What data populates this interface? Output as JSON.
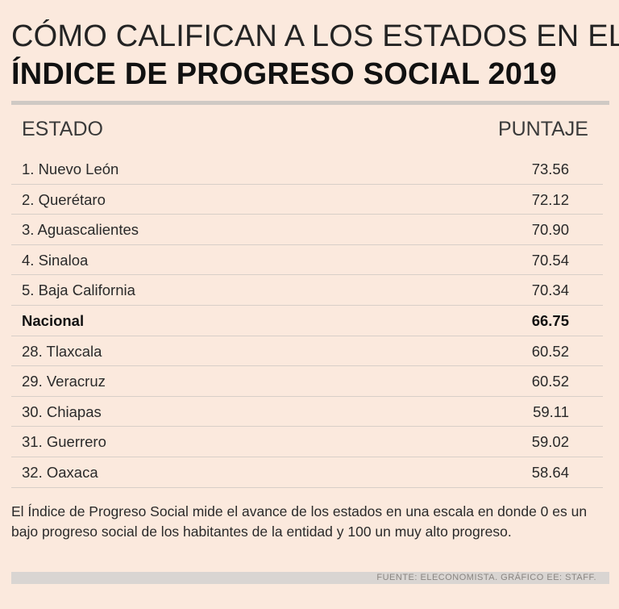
{
  "title_line1": "CÓMO CALIFICAN A LOS ESTADOS EN EL",
  "title_line2": "ÍNDICE DE PROGRESO SOCIAL 2019",
  "header": {
    "col_estado": "ESTADO",
    "col_puntaje": "PUNTAJE"
  },
  "rows": [
    {
      "label": "1. Nuevo León",
      "value": "73.56"
    },
    {
      "label": "2. Querétaro",
      "value": "72.12"
    },
    {
      "label": "3. Aguascalientes",
      "value": "70.90"
    },
    {
      "label": "4. Sinaloa",
      "value": "70.54"
    },
    {
      "label": "5. Baja California",
      "value": "70.34"
    },
    {
      "label": "Nacional",
      "value": "66.75"
    },
    {
      "label": "28. Tlaxcala",
      "value": "60.52"
    },
    {
      "label": "29. Veracruz",
      "value": "60.52"
    },
    {
      "label": "30. Chiapas",
      "value": "59.11"
    },
    {
      "label": "31. Guerrero",
      "value": "59.02"
    },
    {
      "label": "32. Oaxaca",
      "value": "58.64"
    }
  ],
  "note": "El Índice de Progreso Social mide el avance de los estados en una escala en donde 0 es un bajo progreso social de los habitantes de la entidad y 100 un muy alto progreso.",
  "source": "FUENTE: ELECONOMISTA. GRÁFICO EE: STAFF.",
  "colors": {
    "background": "#fbe9dd",
    "rule": "#cfc9c4",
    "source_bar": "#d9d5d2"
  },
  "chart_data": {
    "type": "table",
    "title": "CÓMO CALIFICAN A LOS ESTADOS EN EL ÍNDICE DE PROGRESO SOCIAL 2019",
    "columns": [
      "ESTADO",
      "PUNTAJE"
    ],
    "categories": [
      "1. Nuevo León",
      "2. Querétaro",
      "3. Aguascalientes",
      "4. Sinaloa",
      "5. Baja California",
      "Nacional",
      "28. Tlaxcala",
      "29. Veracruz",
      "30. Chiapas",
      "31. Guerrero",
      "32. Oaxaca"
    ],
    "values": [
      73.56,
      72.12,
      70.9,
      70.54,
      70.34,
      66.75,
      60.52,
      60.52,
      59.11,
      59.02,
      58.64
    ],
    "highlight": "Nacional"
  }
}
